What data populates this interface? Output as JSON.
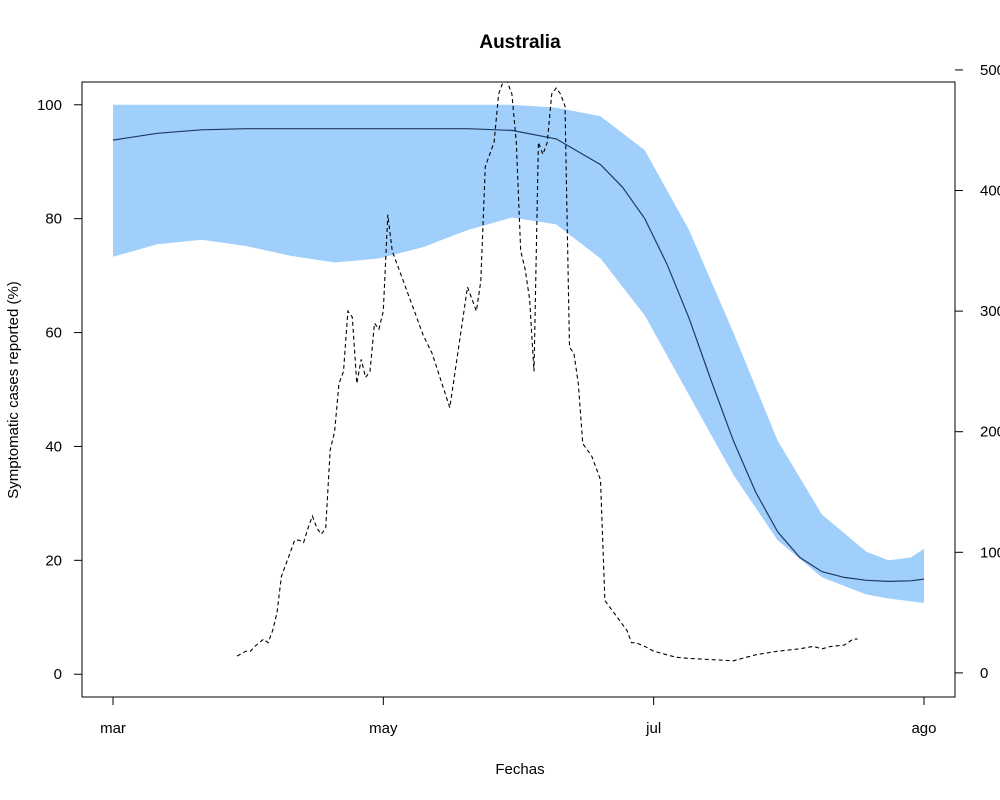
{
  "chart_data": {
    "type": "line",
    "title": "Australia",
    "xlabel": "Fechas",
    "ylabel": "Symptomatic cases reported (%)",
    "ylabel_right": "",
    "x_ticks": [
      "mar",
      "may",
      "jul",
      "ago"
    ],
    "x_tick_days": [
      0,
      61,
      122,
      183
    ],
    "y_ticks": [
      0,
      20,
      40,
      60,
      80,
      100
    ],
    "ylim": [
      -4,
      104
    ],
    "y2_ticks": [
      0,
      100,
      200,
      300,
      400,
      500
    ],
    "y2_tick_labels": [
      "0",
      "100",
      "200",
      "300",
      "400",
      "500"
    ],
    "y2lim": [
      -20,
      490
    ],
    "xlim": [
      -7,
      190
    ],
    "grid": false,
    "colors": {
      "band": "#a0cffc",
      "mean_line": "#1f3a5f",
      "cases_line": "#000000"
    },
    "series": [
      {
        "kind": "band",
        "y2_axis": false,
        "x": [
          0,
          10,
          20,
          30,
          40,
          50,
          60,
          70,
          80,
          90,
          100,
          110,
          120,
          130,
          140,
          150,
          160,
          170,
          175,
          180,
          183
        ],
        "lower": [
          73.3,
          75.5,
          76.3,
          75.2,
          73.5,
          72.3,
          73.0,
          75.0,
          78.0,
          80.2,
          79.0,
          73.0,
          63.0,
          49.0,
          35.0,
          23.5,
          17.0,
          14.0,
          13.3,
          12.8,
          12.5
        ],
        "upper": [
          100,
          100,
          100,
          100,
          100,
          100,
          100,
          100,
          100,
          100,
          99.5,
          98.0,
          92.0,
          78.0,
          60.0,
          41.0,
          28.0,
          21.5,
          20.0,
          20.5,
          22.0
        ]
      },
      {
        "kind": "line",
        "y2_axis": false,
        "x": [
          0,
          10,
          20,
          30,
          40,
          50,
          60,
          70,
          80,
          90,
          100,
          110,
          115,
          120,
          125,
          130,
          135,
          140,
          145,
          150,
          155,
          160,
          165,
          170,
          175,
          180,
          183
        ],
        "y": [
          93.8,
          95.0,
          95.6,
          95.8,
          95.8,
          95.8,
          95.8,
          95.8,
          95.8,
          95.5,
          94.0,
          89.5,
          85.5,
          80.0,
          72.0,
          62.5,
          51.5,
          41.0,
          32.0,
          25.0,
          20.5,
          18.0,
          17.0,
          16.5,
          16.3,
          16.4,
          16.7
        ]
      },
      {
        "kind": "line",
        "dashed": true,
        "y2_axis": true,
        "x": [
          28,
          30,
          31,
          32,
          34,
          35,
          36,
          37,
          38,
          39,
          40,
          41,
          42,
          43,
          44,
          45,
          46,
          47,
          48,
          49,
          50,
          51,
          52,
          53,
          54,
          55,
          56,
          57,
          58,
          59,
          60,
          61,
          62,
          63,
          64,
          65,
          66,
          67,
          68,
          69,
          70,
          72,
          76,
          80,
          82,
          83,
          84,
          85,
          86,
          87,
          88,
          89,
          90,
          91,
          92,
          93,
          94,
          95,
          96,
          97,
          98,
          99,
          100,
          101,
          102,
          103,
          104,
          105,
          106,
          107,
          108,
          109,
          110,
          111,
          112,
          113,
          114,
          115,
          116,
          117,
          118,
          120,
          122,
          124,
          125,
          127,
          130,
          135,
          140,
          145,
          150,
          155,
          158,
          160,
          162,
          165,
          167,
          168
        ],
        "y": [
          14,
          18,
          18,
          22,
          28,
          25,
          35,
          50,
          80,
          90,
          100,
          110,
          110,
          108,
          120,
          130,
          120,
          115,
          120,
          185,
          200,
          240,
          250,
          300,
          295,
          240,
          260,
          245,
          250,
          290,
          285,
          300,
          380,
          350,
          340,
          330,
          320,
          310,
          300,
          290,
          280,
          265,
          220,
          320,
          300,
          325,
          420,
          430,
          440,
          480,
          490,
          490,
          480,
          440,
          350,
          335,
          310,
          250,
          440,
          430,
          440,
          480,
          485,
          480,
          470,
          270,
          265,
          240,
          190,
          185,
          180,
          170,
          160,
          60,
          55,
          50,
          45,
          40,
          35,
          25,
          25,
          22,
          18,
          16,
          15,
          13,
          12,
          11,
          10,
          15,
          18,
          20,
          22,
          20,
          22,
          23,
          28,
          28
        ]
      }
    ]
  }
}
